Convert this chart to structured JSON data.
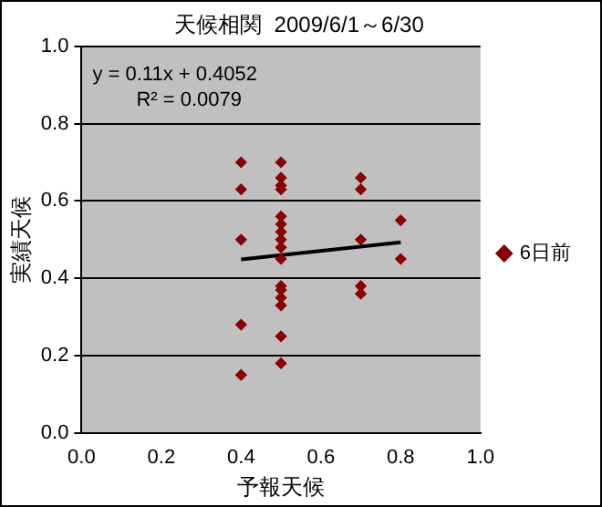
{
  "chart_data": {
    "type": "scatter",
    "title": "天候相関  2009/6/1～6/30",
    "xlabel": "予報天候",
    "ylabel": "実績天候",
    "xlim": [
      0,
      1
    ],
    "ylim": [
      0,
      1
    ],
    "xticks": [
      {
        "value": 0,
        "label": "0.0"
      },
      {
        "value": 0.2,
        "label": "0.2"
      },
      {
        "value": 0.4,
        "label": "0.4"
      },
      {
        "value": 0.6,
        "label": "0.6"
      },
      {
        "value": 0.8,
        "label": "0.8"
      },
      {
        "value": 1,
        "label": "1.0"
      }
    ],
    "yticks": [
      {
        "value": 0,
        "label": "0.0"
      },
      {
        "value": 0.2,
        "label": "0.2"
      },
      {
        "value": 0.4,
        "label": "0.4"
      },
      {
        "value": 0.6,
        "label": "0.6"
      },
      {
        "value": 0.8,
        "label": "0.8"
      },
      {
        "value": 1,
        "label": "1.0"
      }
    ],
    "grid": "y",
    "legend": "right",
    "marker": "diamond",
    "annotations": [
      "y = 0.11x + 0.4052",
      "R² = 0.0079"
    ],
    "series": [
      {
        "name": "6日前",
        "color": "#8b0000",
        "x": [
          0.4,
          0.4,
          0.4,
          0.4,
          0.4,
          0.5,
          0.5,
          0.5,
          0.5,
          0.5,
          0.5,
          0.5,
          0.5,
          0.5,
          0.5,
          0.5,
          0.5,
          0.5,
          0.5,
          0.5,
          0.5,
          0.7,
          0.7,
          0.7,
          0.7,
          0.7,
          0.8,
          0.8
        ],
        "values": [
          0.7,
          0.63,
          0.5,
          0.28,
          0.15,
          0.7,
          0.66,
          0.64,
          0.63,
          0.56,
          0.54,
          0.52,
          0.5,
          0.48,
          0.45,
          0.38,
          0.37,
          0.35,
          0.33,
          0.25,
          0.18,
          0.66,
          0.63,
          0.5,
          0.38,
          0.36,
          0.55,
          0.45
        ]
      },
      {
        "type": "line",
        "marker": "none",
        "color": "#000000",
        "x": [
          0.4,
          0.8
        ],
        "values": [
          0.449,
          0.493
        ]
      }
    ]
  }
}
